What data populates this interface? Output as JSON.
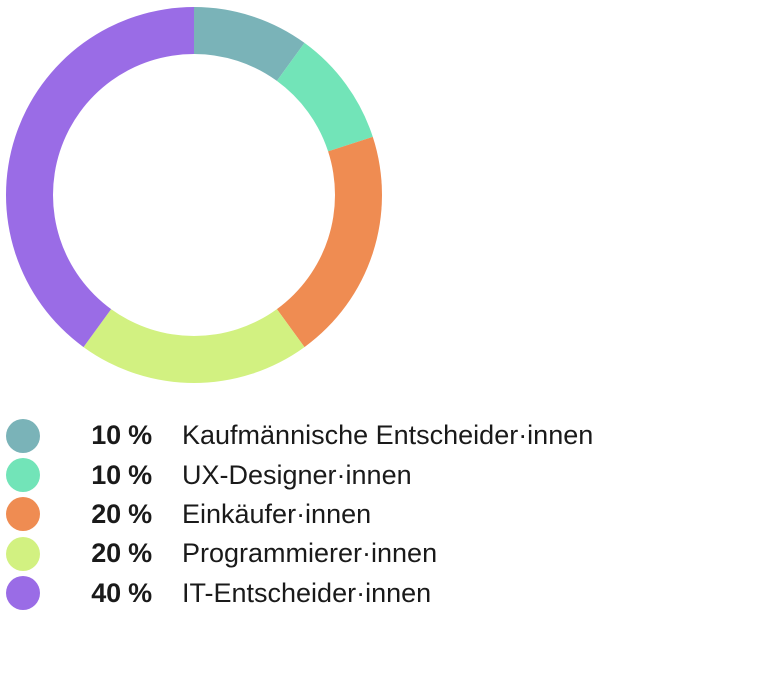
{
  "chart_data": {
    "type": "pie",
    "donut": true,
    "start_angle_deg": 0,
    "direction": "clockwise",
    "value_suffix": " %",
    "slices": [
      {
        "label": "Kaufmännische Entscheider·innen",
        "value": 10,
        "color": "#7ab3b8"
      },
      {
        "label": "UX-Designer·innen",
        "value": 10,
        "color": "#72e4b8"
      },
      {
        "label": "Einkäufer·innen",
        "value": 20,
        "color": "#ef8c52"
      },
      {
        "label": "Programmierer·innen",
        "value": 20,
        "color": "#d2f181"
      },
      {
        "label": "IT-Entscheider·innen",
        "value": 40,
        "color": "#9a6ce6"
      }
    ],
    "legend_position": "bottom-left"
  }
}
